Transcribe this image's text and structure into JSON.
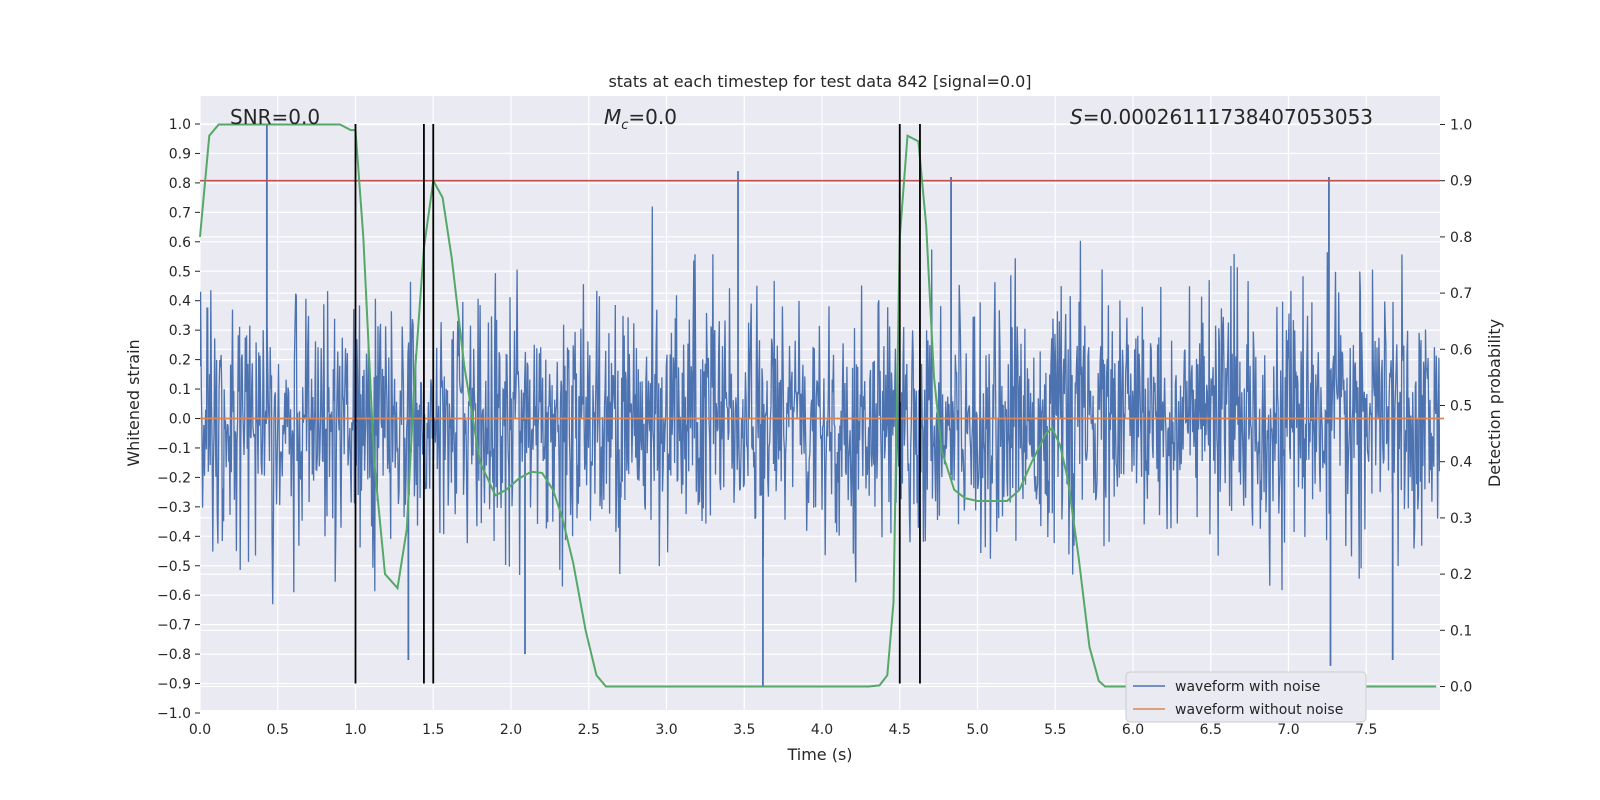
{
  "chart_data": {
    "type": "line",
    "title": "stats at each timestep for test data 842 [signal=0.0]",
    "xlabel": "Time (s)",
    "ylabel": "Whitened strain",
    "ylabel_right": "Detection probability",
    "xlim": [
      0.0,
      8.0
    ],
    "ylim": [
      -1.08,
      1.09
    ],
    "ylim_right": [
      -0.04,
      1.04
    ],
    "x_ticks": [
      "0.0",
      "0.5",
      "1.0",
      "1.5",
      "2.0",
      "2.5",
      "3.0",
      "3.5",
      "4.0",
      "4.5",
      "5.0",
      "5.5",
      "6.0",
      "6.5",
      "7.0",
      "7.5"
    ],
    "y_ticks": [
      "1.0",
      "0.9",
      "0.8",
      "0.7",
      "0.6",
      "0.5",
      "0.4",
      "0.3",
      "0.2",
      "0.1",
      "0.0",
      "−0.1",
      "−0.2",
      "−0.3",
      "−0.4",
      "−0.5",
      "−0.6",
      "−0.7",
      "−0.8",
      "−0.9",
      "−1.0"
    ],
    "y_ticks_right": [
      "1.0",
      "0.9",
      "0.8",
      "0.7",
      "0.6",
      "0.5",
      "0.4",
      "0.3",
      "0.2",
      "0.1",
      "0.0"
    ],
    "annotations": {
      "snr": "SNR=0.0",
      "mc_symbol": "M",
      "mc_sub": "c",
      "mc_value": "=0.0",
      "s_symbol": "S",
      "s_value": "=0.00026111738407053053"
    },
    "legend": {
      "position": "lower-right",
      "entries": [
        "waveform with noise",
        "waveform without noise"
      ]
    },
    "threshold_line": {
      "y_right": 0.9,
      "color": "#c44e52"
    },
    "vertical_lines_x": [
      1.0,
      1.44,
      1.5,
      4.5,
      4.63
    ],
    "vertical_lines_ymin": -0.9,
    "vertical_lines_ymax": 1.0,
    "series": [
      {
        "name": "waveform with noise",
        "color": "#4c72b0",
        "description_stats": {
          "typical_amplitude": 0.4,
          "samples_per_second": 250
        },
        "notable_spikes": [
          {
            "x": 0.43,
            "y": 1.0
          },
          {
            "x": 3.46,
            "y": 0.84
          },
          {
            "x": 7.26,
            "y": 0.82
          },
          {
            "x": 4.83,
            "y": 0.82
          },
          {
            "x": 3.62,
            "y": -0.91
          },
          {
            "x": 7.27,
            "y": -0.84
          },
          {
            "x": 1.34,
            "y": -0.82
          },
          {
            "x": 2.09,
            "y": -0.8
          },
          {
            "x": 7.67,
            "y": -0.82
          }
        ]
      },
      {
        "name": "waveform without noise",
        "color": "#dd8452",
        "x": [
          0.0,
          8.0
        ],
        "y": [
          0.0,
          0.0
        ]
      },
      {
        "name": "detection probability",
        "color": "#55a868",
        "axis": "right",
        "x": [
          0.0,
          0.06,
          0.12,
          0.2,
          0.5,
          0.9,
          0.97,
          1.0,
          1.05,
          1.12,
          1.19,
          1.27,
          1.33,
          1.38,
          1.44,
          1.5,
          1.56,
          1.62,
          1.7,
          1.8,
          1.9,
          1.97,
          2.05,
          2.13,
          2.2,
          2.27,
          2.33,
          2.4,
          2.48,
          2.55,
          2.61,
          2.7,
          3.0,
          3.5,
          4.0,
          4.3,
          4.37,
          4.42,
          4.46,
          4.5,
          4.55,
          4.62,
          4.67,
          4.72,
          4.77,
          4.85,
          4.92,
          5.0,
          5.1,
          5.19,
          5.27,
          5.35,
          5.44,
          5.48,
          5.53,
          5.58,
          5.65,
          5.72,
          5.78,
          5.82,
          6.0,
          7.0,
          7.95
        ],
        "y": [
          0.8,
          0.98,
          1.0,
          1.0,
          1.0,
          1.0,
          0.99,
          0.99,
          0.8,
          0.4,
          0.2,
          0.175,
          0.28,
          0.55,
          0.78,
          0.9,
          0.87,
          0.76,
          0.57,
          0.4,
          0.34,
          0.35,
          0.37,
          0.382,
          0.38,
          0.35,
          0.3,
          0.22,
          0.1,
          0.02,
          0.0,
          0.0,
          0.0,
          0.0,
          0.0,
          0.0,
          0.002,
          0.02,
          0.15,
          0.8,
          0.98,
          0.97,
          0.82,
          0.55,
          0.42,
          0.35,
          0.335,
          0.33,
          0.33,
          0.33,
          0.35,
          0.4,
          0.45,
          0.46,
          0.43,
          0.37,
          0.23,
          0.07,
          0.01,
          0.0,
          0.0,
          0.0,
          0.0
        ]
      }
    ]
  }
}
